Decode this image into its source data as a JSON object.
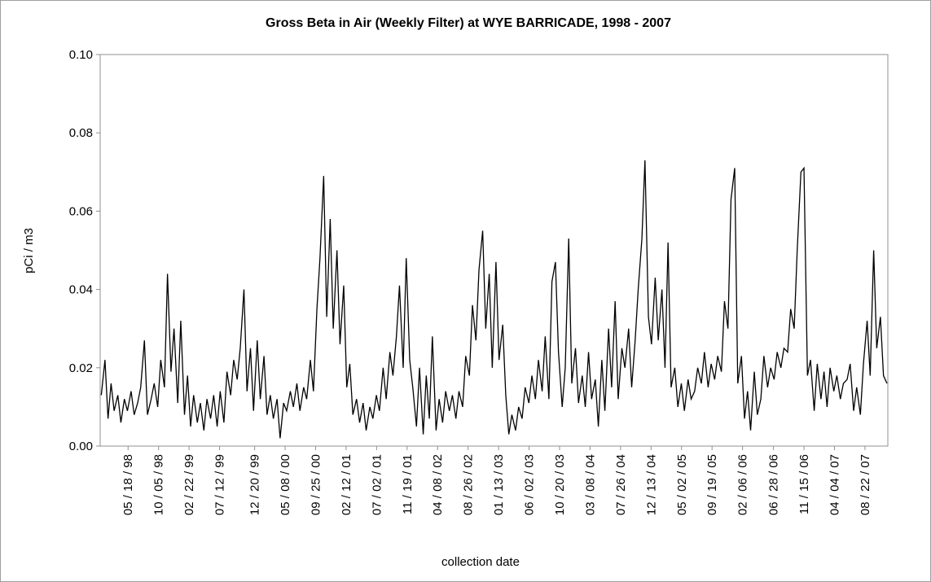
{
  "chart_data": {
    "type": "line",
    "title": "Gross Beta in Air (Weekly Filter) at WYE BARRICADE, 1998 - 2007",
    "x_label": "collection date",
    "y_label": "pCi / m3",
    "xlim": [
      "1998-01-10",
      "2007-12-05"
    ],
    "xticks": [
      {
        "value": "1998-05-18",
        "label": "05 / 18 / 98"
      },
      {
        "value": "1998-10-05",
        "label": "10 / 05 / 98"
      },
      {
        "value": "1999-02-22",
        "label": "02 / 22 / 99"
      },
      {
        "value": "1999-07-12",
        "label": "07 / 12 / 99"
      },
      {
        "value": "1999-12-20",
        "label": "12 / 20 / 99"
      },
      {
        "value": "2000-05-08",
        "label": "05 / 08 / 00"
      },
      {
        "value": "2000-09-25",
        "label": "09 / 25 / 00"
      },
      {
        "value": "2001-02-12",
        "label": "02 / 12 / 01"
      },
      {
        "value": "2001-07-02",
        "label": "07 / 02 / 01"
      },
      {
        "value": "2001-11-19",
        "label": "11 / 19 / 01"
      },
      {
        "value": "2002-04-08",
        "label": "04 / 08 / 02"
      },
      {
        "value": "2002-08-26",
        "label": "08 / 26 / 02"
      },
      {
        "value": "2003-01-13",
        "label": "01 / 13 / 03"
      },
      {
        "value": "2003-06-02",
        "label": "06 / 02 / 03"
      },
      {
        "value": "2003-10-20",
        "label": "10 / 20 / 03"
      },
      {
        "value": "2004-03-08",
        "label": "03 / 08 / 04"
      },
      {
        "value": "2004-07-26",
        "label": "07 / 26 / 04"
      },
      {
        "value": "2004-12-13",
        "label": "12 / 13 / 04"
      },
      {
        "value": "2005-05-02",
        "label": "05 / 02 / 05"
      },
      {
        "value": "2005-09-19",
        "label": "09 / 19 / 05"
      },
      {
        "value": "2006-02-06",
        "label": "02 / 06 / 06"
      },
      {
        "value": "2006-06-28",
        "label": "06 / 28 / 06"
      },
      {
        "value": "2006-11-15",
        "label": "11 / 15 / 06"
      },
      {
        "value": "2007-04-04",
        "label": "04 / 04 / 07"
      },
      {
        "value": "2007-08-22",
        "label": "08 / 22 / 07"
      }
    ],
    "ylim": [
      0,
      0.1
    ],
    "yticks": [
      {
        "value": 0,
        "label": "0.00"
      },
      {
        "value": 0.02,
        "label": "0.02"
      },
      {
        "value": 0.04,
        "label": "0.04"
      },
      {
        "value": 0.06,
        "label": "0.06"
      },
      {
        "value": 0.08,
        "label": "0.08"
      },
      {
        "value": 0.1,
        "label": "0.10"
      }
    ],
    "color": "#000000",
    "x": [
      "1998-01-15",
      "1998-02-01",
      "1998-02-15",
      "1998-03-01",
      "1998-03-15",
      "1998-04-01",
      "1998-04-15",
      "1998-05-01",
      "1998-05-15",
      "1998-06-01",
      "1998-06-15",
      "1998-07-01",
      "1998-07-15",
      "1998-08-01",
      "1998-08-15",
      "1998-09-01",
      "1998-09-15",
      "1998-10-01",
      "1998-10-15",
      "1998-11-01",
      "1998-11-15",
      "1998-12-01",
      "1998-12-15",
      "1999-01-01",
      "1999-01-15",
      "1999-02-01",
      "1999-02-15",
      "1999-03-01",
      "1999-03-15",
      "1999-04-01",
      "1999-04-15",
      "1999-05-01",
      "1999-05-15",
      "1999-06-01",
      "1999-06-15",
      "1999-07-01",
      "1999-07-15",
      "1999-08-01",
      "1999-08-15",
      "1999-09-01",
      "1999-09-15",
      "1999-10-01",
      "1999-10-15",
      "1999-11-01",
      "1999-11-15",
      "1999-12-01",
      "1999-12-15",
      "2000-01-01",
      "2000-01-15",
      "2000-02-01",
      "2000-02-15",
      "2000-03-01",
      "2000-03-15",
      "2000-04-01",
      "2000-04-15",
      "2000-05-01",
      "2000-05-15",
      "2000-06-01",
      "2000-06-15",
      "2000-07-01",
      "2000-07-15",
      "2000-08-01",
      "2000-08-15",
      "2000-09-01",
      "2000-09-15",
      "2000-10-01",
      "2000-10-15",
      "2000-11-01",
      "2000-11-15",
      "2000-12-01",
      "2000-12-15",
      "2001-01-01",
      "2001-01-15",
      "2001-02-01",
      "2001-02-15",
      "2001-03-01",
      "2001-03-15",
      "2001-04-01",
      "2001-04-15",
      "2001-05-01",
      "2001-05-15",
      "2001-06-01",
      "2001-06-15",
      "2001-07-01",
      "2001-07-15",
      "2001-08-01",
      "2001-08-15",
      "2001-09-01",
      "2001-09-15",
      "2001-10-01",
      "2001-10-15",
      "2001-11-01",
      "2001-11-15",
      "2001-12-01",
      "2001-12-15",
      "2002-01-01",
      "2002-01-15",
      "2002-02-01",
      "2002-02-15",
      "2002-03-01",
      "2002-03-15",
      "2002-04-01",
      "2002-04-15",
      "2002-05-01",
      "2002-05-15",
      "2002-06-01",
      "2002-06-15",
      "2002-07-01",
      "2002-07-15",
      "2002-08-01",
      "2002-08-15",
      "2002-09-01",
      "2002-09-15",
      "2002-10-01",
      "2002-10-15",
      "2002-11-01",
      "2002-11-15",
      "2002-12-01",
      "2002-12-15",
      "2003-01-01",
      "2003-01-15",
      "2003-02-01",
      "2003-02-15",
      "2003-03-01",
      "2003-03-15",
      "2003-04-01",
      "2003-04-15",
      "2003-05-01",
      "2003-05-15",
      "2003-06-01",
      "2003-06-15",
      "2003-07-01",
      "2003-07-15",
      "2003-08-01",
      "2003-08-15",
      "2003-09-01",
      "2003-09-15",
      "2003-10-01",
      "2003-10-15",
      "2003-11-01",
      "2003-11-15",
      "2003-12-01",
      "2003-12-15",
      "2004-01-01",
      "2004-01-15",
      "2004-02-01",
      "2004-02-15",
      "2004-03-01",
      "2004-03-15",
      "2004-04-01",
      "2004-04-15",
      "2004-05-01",
      "2004-05-15",
      "2004-06-01",
      "2004-06-15",
      "2004-07-01",
      "2004-07-15",
      "2004-08-01",
      "2004-08-15",
      "2004-09-01",
      "2004-09-15",
      "2004-10-01",
      "2004-10-15",
      "2004-11-01",
      "2004-11-15",
      "2004-12-01",
      "2004-12-15",
      "2005-01-01",
      "2005-01-15",
      "2005-02-01",
      "2005-02-15",
      "2005-03-01",
      "2005-03-15",
      "2005-04-01",
      "2005-04-15",
      "2005-05-01",
      "2005-05-15",
      "2005-06-01",
      "2005-06-15",
      "2005-07-01",
      "2005-07-15",
      "2005-08-01",
      "2005-08-15",
      "2005-09-01",
      "2005-09-15",
      "2005-10-01",
      "2005-10-15",
      "2005-11-01",
      "2005-11-15",
      "2005-12-01",
      "2005-12-15",
      "2006-01-01",
      "2006-01-15",
      "2006-02-01",
      "2006-02-15",
      "2006-03-01",
      "2006-03-15",
      "2006-04-01",
      "2006-04-15",
      "2006-05-01",
      "2006-05-15",
      "2006-06-01",
      "2006-06-15",
      "2006-07-01",
      "2006-07-15",
      "2006-08-01",
      "2006-08-15",
      "2006-09-01",
      "2006-09-15",
      "2006-10-01",
      "2006-10-15",
      "2006-11-01",
      "2006-11-15",
      "2006-12-01",
      "2006-12-15",
      "2007-01-01",
      "2007-01-15",
      "2007-02-01",
      "2007-02-15",
      "2007-03-01",
      "2007-03-15",
      "2007-04-01",
      "2007-04-15",
      "2007-05-01",
      "2007-05-15",
      "2007-06-01",
      "2007-06-15",
      "2007-07-01",
      "2007-07-15",
      "2007-08-01",
      "2007-08-15",
      "2007-09-01",
      "2007-09-15",
      "2007-10-01",
      "2007-10-15",
      "2007-11-01",
      "2007-11-15",
      "2007-12-01"
    ],
    "values": [
      0.013,
      0.022,
      0.007,
      0.016,
      0.009,
      0.013,
      0.006,
      0.012,
      0.009,
      0.014,
      0.008,
      0.011,
      0.015,
      0.027,
      0.008,
      0.012,
      0.016,
      0.01,
      0.022,
      0.015,
      0.044,
      0.019,
      0.03,
      0.011,
      0.032,
      0.008,
      0.018,
      0.005,
      0.013,
      0.006,
      0.011,
      0.004,
      0.012,
      0.007,
      0.013,
      0.005,
      0.014,
      0.006,
      0.019,
      0.013,
      0.022,
      0.017,
      0.025,
      0.04,
      0.014,
      0.025,
      0.009,
      0.027,
      0.012,
      0.023,
      0.008,
      0.013,
      0.007,
      0.012,
      0.002,
      0.011,
      0.009,
      0.014,
      0.01,
      0.016,
      0.009,
      0.015,
      0.012,
      0.022,
      0.014,
      0.035,
      0.048,
      0.069,
      0.033,
      0.058,
      0.03,
      0.05,
      0.026,
      0.041,
      0.015,
      0.021,
      0.008,
      0.012,
      0.006,
      0.011,
      0.004,
      0.01,
      0.007,
      0.013,
      0.009,
      0.02,
      0.012,
      0.024,
      0.018,
      0.028,
      0.041,
      0.02,
      0.048,
      0.022,
      0.015,
      0.005,
      0.02,
      0.003,
      0.018,
      0.007,
      0.028,
      0.004,
      0.012,
      0.006,
      0.014,
      0.009,
      0.013,
      0.007,
      0.014,
      0.01,
      0.023,
      0.018,
      0.036,
      0.027,
      0.045,
      0.055,
      0.03,
      0.044,
      0.02,
      0.047,
      0.022,
      0.031,
      0.013,
      0.003,
      0.008,
      0.004,
      0.01,
      0.007,
      0.015,
      0.011,
      0.018,
      0.012,
      0.022,
      0.014,
      0.028,
      0.012,
      0.042,
      0.047,
      0.024,
      0.01,
      0.02,
      0.053,
      0.016,
      0.025,
      0.011,
      0.018,
      0.01,
      0.024,
      0.012,
      0.017,
      0.005,
      0.022,
      0.009,
      0.03,
      0.015,
      0.037,
      0.012,
      0.025,
      0.02,
      0.03,
      0.015,
      0.027,
      0.04,
      0.053,
      0.073,
      0.033,
      0.026,
      0.043,
      0.027,
      0.04,
      0.02,
      0.052,
      0.015,
      0.02,
      0.01,
      0.016,
      0.009,
      0.017,
      0.012,
      0.014,
      0.02,
      0.016,
      0.024,
      0.015,
      0.021,
      0.017,
      0.023,
      0.019,
      0.037,
      0.03,
      0.063,
      0.071,
      0.016,
      0.023,
      0.007,
      0.014,
      0.004,
      0.019,
      0.008,
      0.012,
      0.023,
      0.015,
      0.02,
      0.017,
      0.024,
      0.02,
      0.025,
      0.024,
      0.035,
      0.03,
      0.05,
      0.07,
      0.071,
      0.018,
      0.022,
      0.009,
      0.021,
      0.012,
      0.019,
      0.01,
      0.02,
      0.014,
      0.018,
      0.012,
      0.016,
      0.017,
      0.021,
      0.009,
      0.015,
      0.008,
      0.021,
      0.032,
      0.018,
      0.05,
      0.025,
      0.033,
      0.018,
      0.016
    ]
  }
}
